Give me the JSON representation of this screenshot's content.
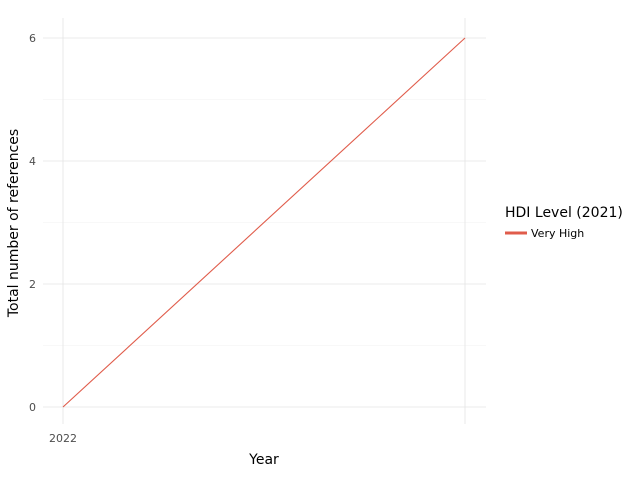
{
  "chart_data": {
    "type": "line",
    "title": "",
    "xlabel": "Year",
    "ylabel": "Total number of references",
    "x_tick_labels": [
      "2022"
    ],
    "y_ticks": [
      0,
      2,
      4,
      6
    ],
    "y_tick_labels": [
      "0",
      "2",
      "4",
      "6"
    ],
    "ylim": [
      0,
      6
    ],
    "grid": true,
    "legend": {
      "title": "HDI Level (2021)",
      "position": "right"
    },
    "series": [
      {
        "name": "Very High",
        "color": "#e05c4b",
        "points": [
          {
            "x": "2022",
            "y": 0
          },
          {
            "x": "",
            "y": 6
          }
        ]
      }
    ]
  }
}
